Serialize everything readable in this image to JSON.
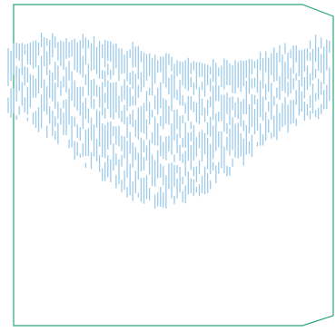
{
  "colors": {
    "background": "#ffffff",
    "frame": "#2aa876",
    "bars": "#9ecbea"
  },
  "icon": "wavy-vertical-line-pattern"
}
